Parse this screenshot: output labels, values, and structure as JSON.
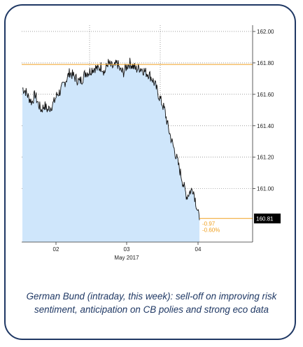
{
  "caption": "German Bund (intraday, this week): sell-off on improving risk sentiment, anticipation on CB polies and strong eco data",
  "colors": {
    "frame": "#1f3864",
    "caption_text": "#1f3864",
    "area_fill": "#cfe6fb",
    "price_line": "#111111",
    "reference_line": "#f0a020",
    "annotation": "#f0a020",
    "last_price_box": "#000000"
  },
  "chart_data": {
    "type": "area",
    "title": "",
    "xlabel": "May 2017",
    "ylabel": "",
    "x_tick_labels": [
      "02",
      "03",
      "04"
    ],
    "y_tick_labels": [
      "160.81",
      "161.00",
      "161.20",
      "161.40",
      "161.60",
      "161.80",
      "162.00"
    ],
    "ylim": [
      160.66,
      162.04
    ],
    "y_ticks": [
      161.0,
      161.2,
      161.4,
      161.6,
      161.8,
      162.0
    ],
    "grid": "dotted",
    "reference_level": 161.79,
    "last_price": 160.81,
    "last_price_label": "160.81",
    "change_labels": [
      "-0.97",
      "-0.60%"
    ],
    "series": [
      {
        "values": [
          161.64,
          161.62,
          161.58,
          161.55,
          161.6,
          161.54,
          161.5,
          161.53,
          161.5,
          161.52,
          161.55,
          161.6,
          161.62,
          161.66,
          161.7,
          161.74,
          161.72,
          161.7,
          161.68,
          161.7,
          161.74,
          161.74,
          161.76,
          161.77,
          161.76,
          161.78,
          161.74,
          161.8,
          161.78,
          161.77,
          161.8,
          161.75,
          161.74,
          161.78,
          161.8,
          161.78,
          161.76,
          161.77,
          161.76,
          161.74,
          161.73,
          161.7,
          161.66,
          161.6,
          161.55,
          161.5,
          161.4,
          161.32,
          161.25,
          161.18,
          161.1,
          161.02,
          160.95,
          160.98,
          161.0,
          160.9,
          160.8
        ]
      }
    ]
  }
}
